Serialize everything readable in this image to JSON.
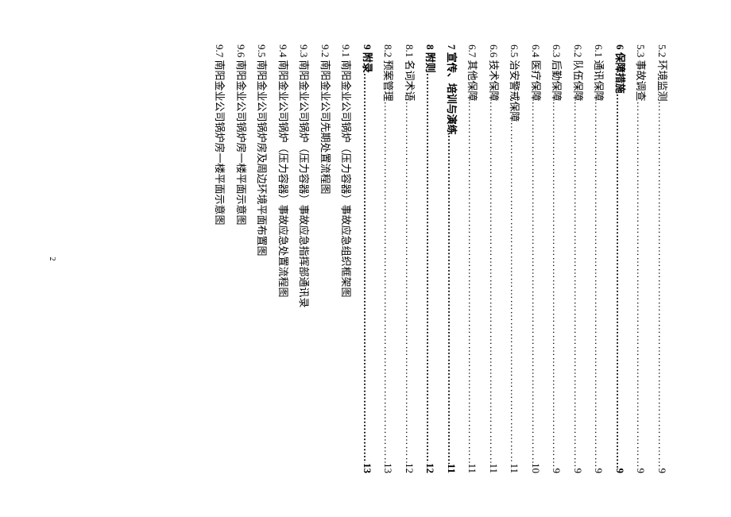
{
  "toc": [
    {
      "num": "5.2",
      "title": "环境监测",
      "page": "9",
      "section": false,
      "dotted": true
    },
    {
      "num": "5.3",
      "title": "事故调查",
      "page": "9",
      "section": false,
      "dotted": true
    },
    {
      "num": "6",
      "title": "保障措施",
      "page": "9",
      "section": true,
      "dotted": true
    },
    {
      "num": "6.1",
      "title": "通讯保障",
      "page": "9",
      "section": false,
      "dotted": true
    },
    {
      "num": "6.2",
      "title": "队伍保障",
      "page": "9",
      "section": false,
      "dotted": true
    },
    {
      "num": "6.3",
      "title": "后勤保障",
      "page": "9",
      "section": false,
      "dotted": true
    },
    {
      "num": "6.4",
      "title": "医疗保障",
      "page": "10",
      "section": false,
      "dotted": true
    },
    {
      "num": "6.5",
      "title": "治安警戒保障",
      "page": "11",
      "section": false,
      "dotted": true
    },
    {
      "num": "6.6",
      "title": "技术保障",
      "page": "11",
      "section": false,
      "dotted": true
    },
    {
      "num": "6.7",
      "title": "其他保障",
      "page": "11",
      "section": false,
      "dotted": true
    },
    {
      "num": "7",
      "title": "宣传、培训与演练",
      "page": "11",
      "section": true,
      "dotted": true
    },
    {
      "num": "8",
      "title": "附则",
      "page": "12",
      "section": true,
      "dotted": true
    },
    {
      "num": "8.1",
      "title": "名词术语",
      "page": "12",
      "section": false,
      "dotted": true
    },
    {
      "num": "8.2",
      "title": "预案管理",
      "page": "13",
      "section": false,
      "dotted": true
    },
    {
      "num": "9",
      "title": "附录",
      "page": "13",
      "section": true,
      "dotted": true
    },
    {
      "num": "9.1",
      "title": "南阳金业公司锅炉（压力容器）事故应急组织框架图",
      "page": "",
      "section": false,
      "dotted": false
    },
    {
      "num": "9.2",
      "title": "南阳金业公司先期处置流程图",
      "page": "",
      "section": false,
      "dotted": false
    },
    {
      "num": "9.3",
      "title": "南阳金业公司锅炉（压力容器）事故应急指挥部通讯录",
      "page": "",
      "section": false,
      "dotted": false
    },
    {
      "num": "9.4",
      "title": "南阳金业公司锅炉（压力容器）事故应急处置流程图",
      "page": "",
      "section": false,
      "dotted": false
    },
    {
      "num": "9.5",
      "title": "南阳金业公司锅炉房及周边环境平面布置图",
      "page": "",
      "section": false,
      "dotted": false
    },
    {
      "num": "9.6",
      "title": "南阳金业公司锅炉房一楼平面示意图",
      "page": "",
      "section": false,
      "dotted": false
    },
    {
      "num": "9.7",
      "title": "南阳金业公司锅炉房一楼平面示意图",
      "page": "",
      "section": false,
      "dotted": false
    }
  ],
  "footer_page": "2",
  "dots_fill": "…………………………………………………………………………………………………………………………………………"
}
